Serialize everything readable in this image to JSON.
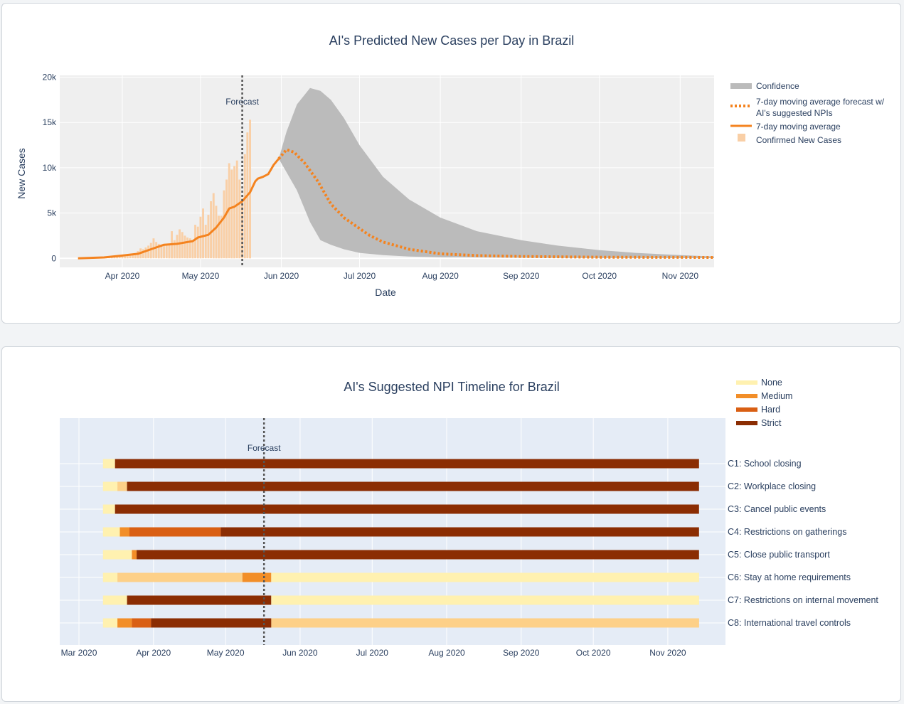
{
  "chart_data": [
    {
      "type": "area",
      "title": "AI's Predicted New Cases per Day in Brazil",
      "xlabel": "Date",
      "ylabel": "New Cases",
      "x_ticks": [
        "Apr 2020",
        "May 2020",
        "Jun 2020",
        "Jul 2020",
        "Aug 2020",
        "Sep 2020",
        "Oct 2020",
        "Nov 2020"
      ],
      "y_ticks": [
        "0",
        "5k",
        "10k",
        "15k",
        "20k"
      ],
      "ylim": [
        -1000,
        20200
      ],
      "xlim": [
        "2020-03-08",
        "2020-11-14"
      ],
      "grid": true,
      "legend_position": "right",
      "legend": [
        "Confidence",
        "7-day moving average forecast w/ AI's suggested NPIs",
        "7-day moving average",
        "Confirmed New Cases"
      ],
      "forecast_label": "Forecast",
      "forecast_date": "2020-05-17",
      "colors": {
        "confidence": "#bbbbbb",
        "forecast": "#f4831f",
        "moving_average": "#f4831f",
        "confirmed": "#f9cfa6",
        "plot_bg": "#efefef",
        "forecast_line": "#555555"
      },
      "series": [
        {
          "name": "Confirmed New Cases",
          "kind": "bar",
          "x_start": "2020-03-15",
          "values": [
            0,
            2,
            3,
            3,
            5,
            10,
            13,
            25,
            30,
            40,
            50,
            65,
            80,
            100,
            150,
            170,
            200,
            220,
            240,
            260,
            300,
            340,
            400,
            800,
            1100,
            1000,
            1200,
            1400,
            1700,
            2200,
            1800,
            1600,
            1500,
            1400,
            1400,
            1600,
            3000,
            2000,
            2600,
            3200,
            2900,
            2500,
            2300,
            2200,
            2000,
            3700,
            3500,
            4600,
            5500,
            3700,
            4800,
            6300,
            7200,
            5800,
            4700,
            4700,
            7500,
            8700,
            10500,
            9800,
            10200,
            10800,
            8700,
            6600,
            11500,
            13900,
            15300
          ]
        },
        {
          "name": "7-day moving average",
          "kind": "line",
          "points": [
            [
              "2020-03-15",
              0
            ],
            [
              "2020-03-25",
              100
            ],
            [
              "2020-04-01",
              300
            ],
            [
              "2020-04-07",
              500
            ],
            [
              "2020-04-12",
              1000
            ],
            [
              "2020-04-17",
              1500
            ],
            [
              "2020-04-22",
              1600
            ],
            [
              "2020-04-28",
              1900
            ],
            [
              "2020-04-30",
              2300
            ],
            [
              "2020-05-04",
              2600
            ],
            [
              "2020-05-07",
              3400
            ],
            [
              "2020-05-10",
              4500
            ],
            [
              "2020-05-12",
              5500
            ],
            [
              "2020-05-14",
              5700
            ],
            [
              "2020-05-17",
              6300
            ],
            [
              "2020-05-20",
              7300
            ],
            [
              "2020-05-22",
              8500
            ],
            [
              "2020-05-23",
              8800
            ],
            [
              "2020-05-25",
              9000
            ],
            [
              "2020-05-27",
              9300
            ],
            [
              "2020-05-29",
              10300
            ],
            [
              "2020-05-31",
              11000
            ]
          ]
        },
        {
          "name": "Confidence",
          "kind": "band",
          "upper": [
            [
              "2020-05-31",
              11000
            ],
            [
              "2020-06-03",
              14000
            ],
            [
              "2020-06-07",
              17000
            ],
            [
              "2020-06-12",
              18800
            ],
            [
              "2020-06-16",
              18500
            ],
            [
              "2020-06-20",
              17500
            ],
            [
              "2020-06-25",
              15500
            ],
            [
              "2020-07-01",
              12500
            ],
            [
              "2020-07-10",
              9000
            ],
            [
              "2020-07-20",
              6500
            ],
            [
              "2020-08-01",
              4500
            ],
            [
              "2020-08-15",
              3000
            ],
            [
              "2020-09-01",
              2000
            ],
            [
              "2020-09-15",
              1400
            ],
            [
              "2020-10-01",
              900
            ],
            [
              "2020-10-15",
              600
            ],
            [
              "2020-11-01",
              350
            ],
            [
              "2020-11-14",
              200
            ]
          ],
          "lower": [
            [
              "2020-05-31",
              11000
            ],
            [
              "2020-06-03",
              9500
            ],
            [
              "2020-06-07",
              7500
            ],
            [
              "2020-06-12",
              4000
            ],
            [
              "2020-06-16",
              2000
            ],
            [
              "2020-06-20",
              1500
            ],
            [
              "2020-06-25",
              1000
            ],
            [
              "2020-07-01",
              600
            ],
            [
              "2020-07-10",
              350
            ],
            [
              "2020-07-20",
              200
            ],
            [
              "2020-08-01",
              120
            ],
            [
              "2020-09-01",
              60
            ],
            [
              "2020-10-01",
              30
            ],
            [
              "2020-11-14",
              20
            ]
          ]
        },
        {
          "name": "7-day moving average forecast w/ AI's suggested NPIs",
          "kind": "line-dotted",
          "points": [
            [
              "2020-05-31",
              11000
            ],
            [
              "2020-06-03",
              12000
            ],
            [
              "2020-06-06",
              11700
            ],
            [
              "2020-06-10",
              10500
            ],
            [
              "2020-06-15",
              8500
            ],
            [
              "2020-06-20",
              6000
            ],
            [
              "2020-06-25",
              4500
            ],
            [
              "2020-06-30",
              3500
            ],
            [
              "2020-07-05",
              2500
            ],
            [
              "2020-07-10",
              1800
            ],
            [
              "2020-07-20",
              1000
            ],
            [
              "2020-08-01",
              500
            ],
            [
              "2020-08-15",
              300
            ],
            [
              "2020-09-01",
              200
            ],
            [
              "2020-10-01",
              120
            ],
            [
              "2020-11-14",
              100
            ]
          ]
        }
      ]
    },
    {
      "type": "timeline",
      "title": "AI's Suggested NPI Timeline for Brazil",
      "x_ticks": [
        "Mar 2020",
        "Apr 2020",
        "May 2020",
        "Jun 2020",
        "Jul 2020",
        "Aug 2020",
        "Sep 2020",
        "Oct 2020",
        "Nov 2020"
      ],
      "xlim": [
        "2020-02-22",
        "2020-11-25"
      ],
      "grid": true,
      "legend_position": "top-right",
      "forecast_label": "Forecast",
      "forecast_date": "2020-05-17",
      "levels": [
        {
          "name": "None",
          "color": "#fff1b0"
        },
        {
          "name": "Medium",
          "color": "#f28e28"
        },
        {
          "name": "Hard",
          "color": "#d95f14"
        },
        {
          "name": "Strict",
          "color": "#8b2d03"
        }
      ],
      "light_color": "#fdd088",
      "rows": [
        {
          "label": "C1: School closing",
          "segments": [
            [
              "2020-03-11",
              "2020-03-16",
              "None"
            ],
            [
              "2020-03-16",
              "2020-11-14",
              "Strict"
            ]
          ]
        },
        {
          "label": "C2: Workplace closing",
          "segments": [
            [
              "2020-03-11",
              "2020-03-17",
              "None"
            ],
            [
              "2020-03-17",
              "2020-03-21",
              "light"
            ],
            [
              "2020-03-21",
              "2020-11-14",
              "Strict"
            ]
          ]
        },
        {
          "label": "C3: Cancel public events",
          "segments": [
            [
              "2020-03-11",
              "2020-03-16",
              "None"
            ],
            [
              "2020-03-16",
              "2020-11-14",
              "Strict"
            ]
          ]
        },
        {
          "label": "C4: Restrictions on gatherings",
          "segments": [
            [
              "2020-03-11",
              "2020-03-18",
              "None"
            ],
            [
              "2020-03-18",
              "2020-03-22",
              "Medium"
            ],
            [
              "2020-03-22",
              "2020-04-29",
              "Hard"
            ],
            [
              "2020-04-29",
              "2020-11-14",
              "Strict"
            ]
          ]
        },
        {
          "label": "C5: Close public transport",
          "segments": [
            [
              "2020-03-11",
              "2020-03-23",
              "None"
            ],
            [
              "2020-03-23",
              "2020-03-25",
              "Medium"
            ],
            [
              "2020-03-25",
              "2020-11-14",
              "Strict"
            ]
          ]
        },
        {
          "label": "C6: Stay at home requirements",
          "segments": [
            [
              "2020-03-11",
              "2020-03-17",
              "None"
            ],
            [
              "2020-03-17",
              "2020-05-08",
              "light"
            ],
            [
              "2020-05-08",
              "2020-05-20",
              "Medium"
            ],
            [
              "2020-05-20",
              "2020-11-14",
              "None"
            ]
          ]
        },
        {
          "label": "C7: Restrictions on internal movement",
          "segments": [
            [
              "2020-03-11",
              "2020-03-21",
              "None"
            ],
            [
              "2020-03-21",
              "2020-05-20",
              "Strict"
            ],
            [
              "2020-05-20",
              "2020-11-14",
              "None"
            ]
          ]
        },
        {
          "label": "C8: International travel controls",
          "segments": [
            [
              "2020-03-11",
              "2020-03-17",
              "None"
            ],
            [
              "2020-03-17",
              "2020-03-23",
              "Medium"
            ],
            [
              "2020-03-23",
              "2020-03-31",
              "Hard"
            ],
            [
              "2020-03-31",
              "2020-05-20",
              "Strict"
            ],
            [
              "2020-05-20",
              "2020-11-14",
              "light"
            ]
          ]
        }
      ]
    }
  ]
}
